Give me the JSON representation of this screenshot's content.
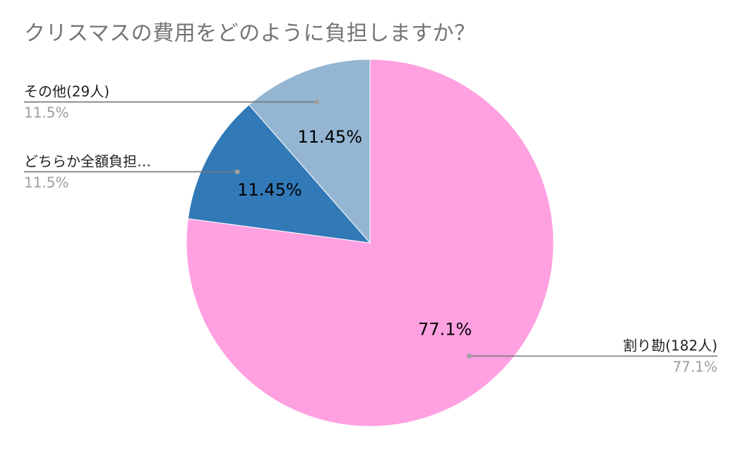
{
  "chart_data": {
    "type": "pie",
    "title": "クリスマスの費用をどのように負担しますか？",
    "slices": [
      {
        "label": "割り勘(182人)",
        "percent_label": "77.1%",
        "inner_label": "77.1%",
        "value": 77.1,
        "color": "#ffa0e1"
      },
      {
        "label": "どちらか全額負担…",
        "percent_label": "11.5%",
        "inner_label": "11.45%",
        "value": 11.45,
        "color": "#3279b7"
      },
      {
        "label": "その他(29人)",
        "percent_label": "11.5%",
        "inner_label": "11.45%",
        "value": 11.45,
        "color": "#94b6d3"
      }
    ],
    "legend": "none (callout labels)"
  }
}
